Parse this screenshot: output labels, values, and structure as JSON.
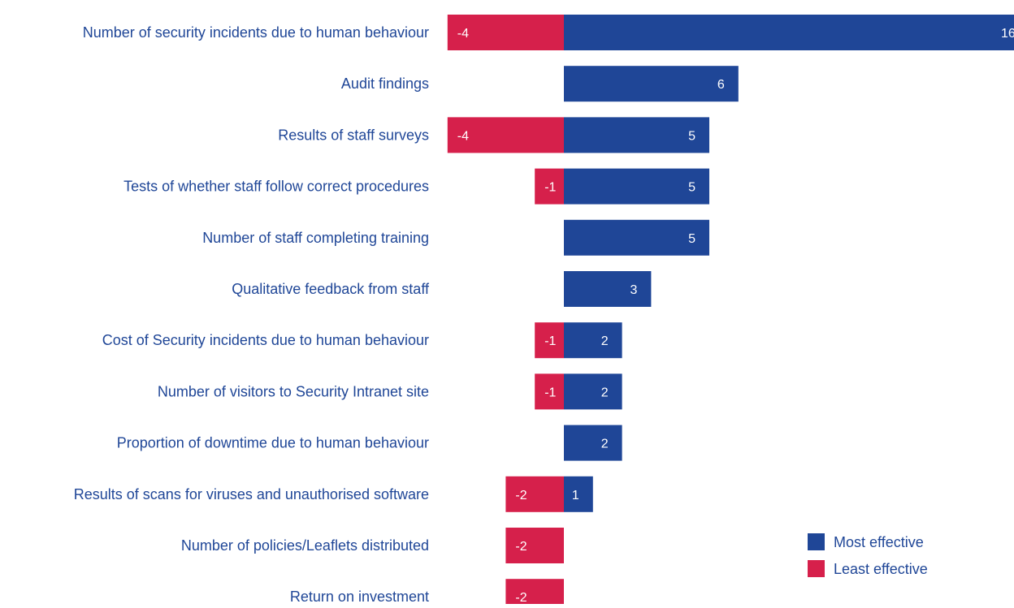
{
  "chart_data": {
    "type": "bar",
    "orientation": "horizontal",
    "stacked": "diverging",
    "categories": [
      "Number of security incidents due to human behaviour",
      "Audit findings",
      "Results of staff surveys",
      "Tests of whether staff follow correct procedures",
      "Number of staff completing training",
      "Qualitative feedback from staff",
      "Cost of Security incidents due to human behaviour",
      "Number of visitors to Security Intranet site",
      "Proportion of downtime due to human behaviour",
      "Results of scans for viruses and unauthorised software",
      "Number of policies/Leaflets distributed",
      "Return on investment"
    ],
    "series": [
      {
        "name": "Most effective",
        "color": "#1f4697",
        "values": [
          16,
          6,
          5,
          5,
          5,
          3,
          2,
          2,
          2,
          1,
          0,
          0
        ]
      },
      {
        "name": "Least effective",
        "color": "#d6204b",
        "values": [
          -4,
          0,
          -4,
          -1,
          0,
          0,
          -1,
          -1,
          0,
          -2,
          -2,
          -2
        ]
      }
    ],
    "xlim": [
      -4,
      16
    ],
    "grid": false,
    "legend_position": "bottom-right",
    "label_color": "#1f4697",
    "value_label_color": "#ffffff"
  }
}
